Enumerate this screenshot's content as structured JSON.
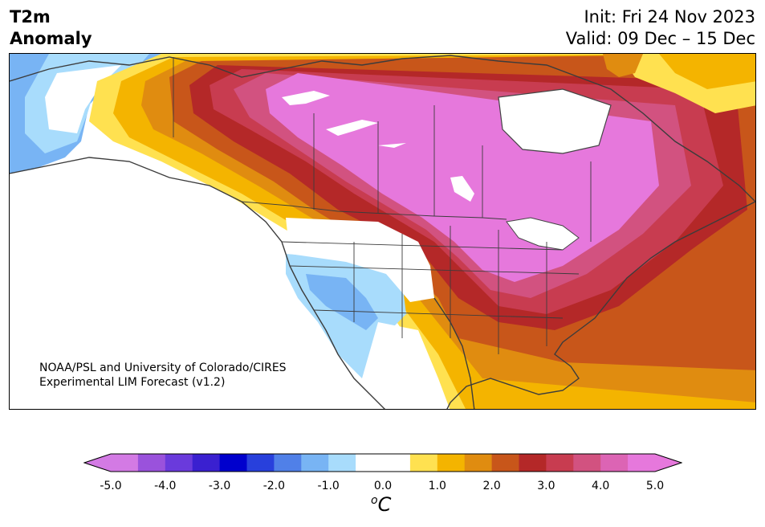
{
  "header": {
    "variable": "T2m",
    "field": "Anomaly",
    "init": "Init: Fri 24 Nov 2023",
    "valid": "Valid: 09 Dec – 15 Dec"
  },
  "credit": {
    "line1": "NOAA/PSL and University of Colorado/CIRES",
    "line2": "Experimental LIM Forecast (v1.2)"
  },
  "colorbar": {
    "colors": [
      "#d37ae4",
      "#9a52dc",
      "#6a3adc",
      "#3a20d0",
      "#0000cd",
      "#2840dc",
      "#5080e8",
      "#78b4f4",
      "#a8dcfc",
      "#ffffff",
      "#ffffff",
      "#ffe150",
      "#f4b400",
      "#e08c10",
      "#c8561a",
      "#b42828",
      "#c83c50",
      "#d25280",
      "#dc64b4",
      "#e678dc"
    ],
    "ticks": [
      "-5.0",
      "-4.0",
      "-3.0",
      "-2.0",
      "-1.0",
      "0.0",
      "1.0",
      "2.0",
      "3.0",
      "4.0",
      "5.0"
    ],
    "units_base": "o",
    "units_letter": "C"
  },
  "legend_colors": {
    "cold_3": "#78b4f4",
    "cold_2": "#a8dcfc",
    "neutral": "#ffffff",
    "warm_1": "#ffe150",
    "warm_2": "#f4b400",
    "warm_3": "#e08c10",
    "warm_4": "#c8561a",
    "warm_5": "#b42828",
    "warm_6": "#c83c50",
    "warm_7": "#d25280",
    "warm_8": "#e678dc"
  }
}
